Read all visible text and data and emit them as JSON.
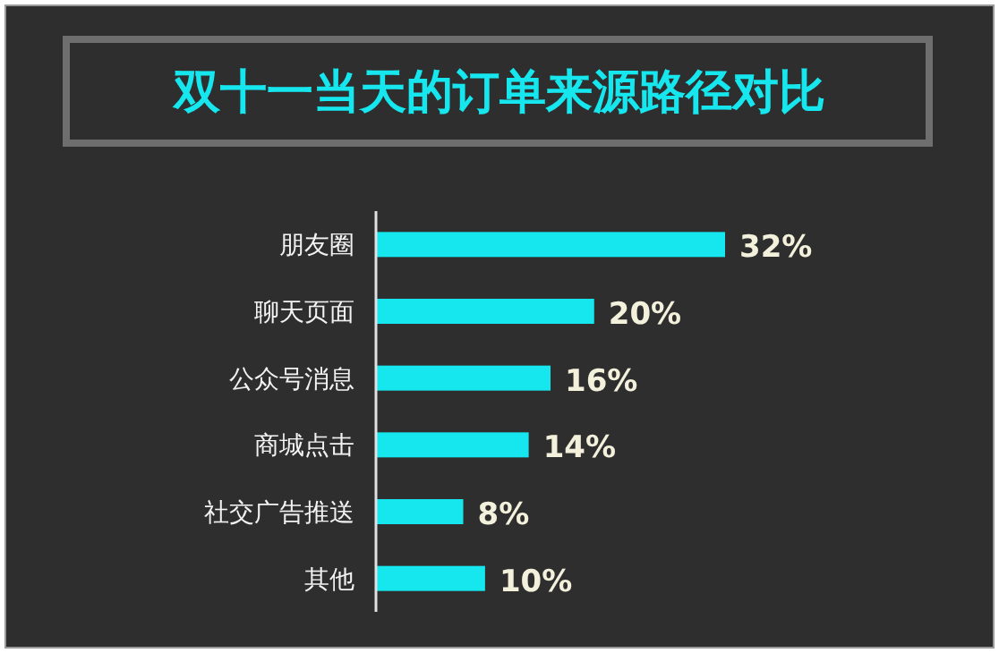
{
  "chart_data": {
    "type": "bar",
    "orientation": "horizontal",
    "title": "双十一当天的订单来源路径对比",
    "categories": [
      "朋友圈",
      "聊天页面",
      "公众号消息",
      "商城点击",
      "社交广告推送",
      "其他"
    ],
    "values": [
      32,
      20,
      16,
      14,
      8,
      10
    ],
    "value_labels": [
      "32%",
      "20%",
      "16%",
      "14%",
      "8%",
      "10%"
    ],
    "color": "#16e6ee"
  }
}
